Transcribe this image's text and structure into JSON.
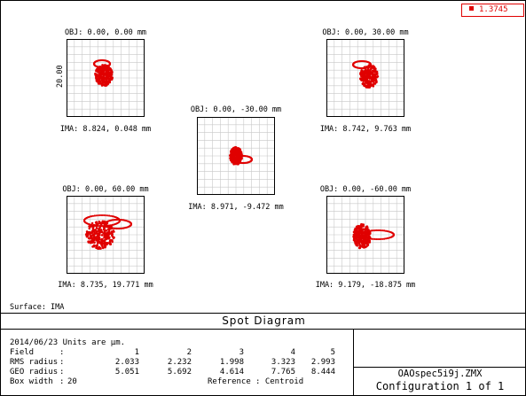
{
  "wavelength": {
    "value": "1.3745",
    "color": "#e00000"
  },
  "plots": [
    {
      "id": "f1",
      "obj": "OBJ: 0.00, 0.00 mm",
      "ima": "IMA: 8.824, 0.048 mm",
      "scale_label": "20.00"
    },
    {
      "id": "f2",
      "obj": "OBJ: 0.00, 30.00 mm",
      "ima": "IMA: 8.742, 9.763 mm"
    },
    {
      "id": "f3",
      "obj": "OBJ: 0.00, -30.00 mm",
      "ima": "IMA: 8.971, -9.472 mm"
    },
    {
      "id": "f4",
      "obj": "OBJ: 0.00, 60.00 mm",
      "ima": "IMA: 8.735, 19.771 mm"
    },
    {
      "id": "f5",
      "obj": "OBJ: 0.00, -60.00 mm",
      "ima": "IMA: 9.179, -18.875 mm"
    }
  ],
  "surface": "Surface: IMA",
  "title": "Spot Diagram",
  "info": {
    "date_units": "2014/06/23  Units are µm.",
    "field_label": "Field",
    "rms_label": "RMS radius",
    "geo_label": "GEO radius",
    "box_label": "Box width",
    "colon": ":",
    "box_value": "20",
    "reference_label": "Reference",
    "reference_value": ": Centroid",
    "fields": [
      "1",
      "2",
      "3",
      "4",
      "5"
    ],
    "rms": [
      "2.033",
      "2.232",
      "1.998",
      "3.323",
      "2.993"
    ],
    "geo": [
      "5.051",
      "5.692",
      "4.614",
      "7.765",
      "8.444"
    ]
  },
  "filename": "OAOspec5i9j.ZMX",
  "configuration": "Configuration 1 of 1"
}
